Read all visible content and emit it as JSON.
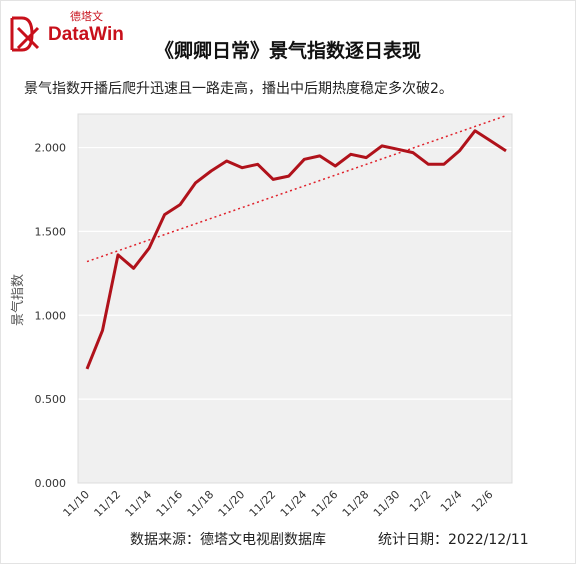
{
  "brand": {
    "cn": "德塔文",
    "en": "DataWin"
  },
  "title": "《卿卿日常》景气指数逐日表现",
  "subtitle": "景气指数开播后爬升迅速且一路走高，播出中后期热度稳定多次破2。",
  "footer": {
    "source": "数据来源：德塔文电视剧数据库",
    "date": "统计日期：2022/12/11"
  },
  "colors": {
    "line": "#b0121b",
    "trend": "#e0202a",
    "plot_bg": "#f0f0f0",
    "brand": "#c8101b"
  },
  "chart_data": {
    "type": "line",
    "ylabel": "景气指数",
    "xlabel": "",
    "ylim": [
      0,
      2.2
    ],
    "yticks": [
      "0.000",
      "0.500",
      "1.000",
      "1.500",
      "2.000"
    ],
    "x_tick_labels": [
      "11/10",
      "11/12",
      "11/14",
      "11/16",
      "11/18",
      "11/20",
      "11/22",
      "11/24",
      "11/26",
      "11/28",
      "11/30",
      "12/2",
      "12/4",
      "12/6"
    ],
    "x": [
      "11/10",
      "11/11",
      "11/12",
      "11/13",
      "11/14",
      "11/15",
      "11/16",
      "11/17",
      "11/18",
      "11/19",
      "11/20",
      "11/21",
      "11/22",
      "11/23",
      "11/24",
      "11/25",
      "11/26",
      "11/27",
      "11/28",
      "11/29",
      "11/30",
      "12/1",
      "12/2",
      "12/3",
      "12/4",
      "12/5",
      "12/6",
      "12/7"
    ],
    "series": [
      {
        "values": [
          0.68,
          0.91,
          1.36,
          1.28,
          1.4,
          1.6,
          1.66,
          1.79,
          1.86,
          1.92,
          1.88,
          1.9,
          1.81,
          1.83,
          1.93,
          1.95,
          1.89,
          1.96,
          1.94,
          2.01,
          1.99,
          1.97,
          1.9,
          1.9,
          1.98,
          2.1,
          2.04,
          1.98
        ]
      }
    ],
    "trendline": {
      "start": 1.32,
      "end": 2.19
    },
    "grid": "horizontal"
  }
}
